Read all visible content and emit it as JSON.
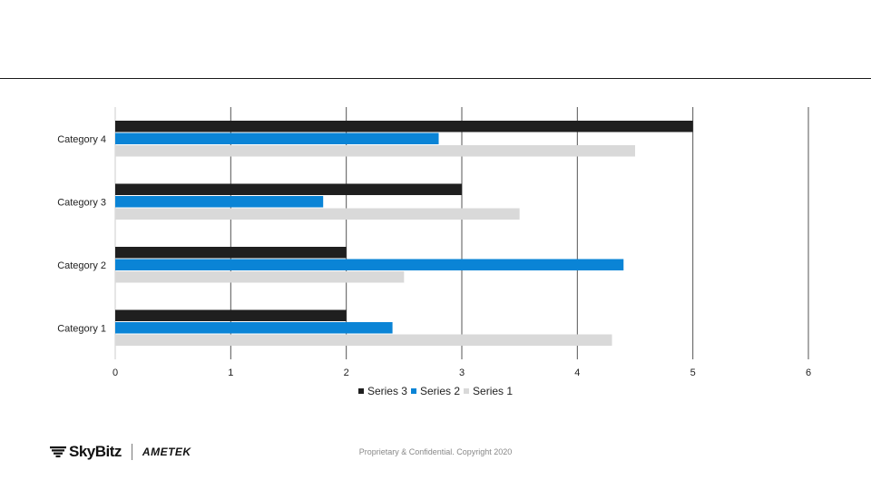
{
  "chart_data": {
    "type": "bar",
    "orientation": "horizontal",
    "categories": [
      "Category 1",
      "Category 2",
      "Category 3",
      "Category 4"
    ],
    "series": [
      {
        "name": "Series 1",
        "color": "#d9d9d9",
        "values": [
          4.3,
          2.5,
          3.5,
          4.5
        ]
      },
      {
        "name": "Series 2",
        "color": "#0a84d6",
        "values": [
          2.4,
          4.4,
          1.8,
          2.8
        ]
      },
      {
        "name": "Series 3",
        "color": "#1f1f1f",
        "values": [
          2,
          2,
          3,
          5
        ]
      }
    ],
    "xlim": [
      0,
      6
    ],
    "xticks": [
      "0",
      "1",
      "2",
      "3",
      "4",
      "5",
      "6"
    ],
    "grid": true,
    "legend_position": "bottom",
    "legend_order": [
      "Series 3",
      "Series 2",
      "Series 1"
    ],
    "title": "",
    "xlabel": "",
    "ylabel": ""
  },
  "footer": {
    "copyright": "Proprietary & Confidential. Copyright 2020"
  },
  "logos": {
    "skybitz": "SkyBitz",
    "ametek": "AMETEK"
  },
  "colors": {
    "rule": "#1a1a1a",
    "grid": "#555555"
  }
}
